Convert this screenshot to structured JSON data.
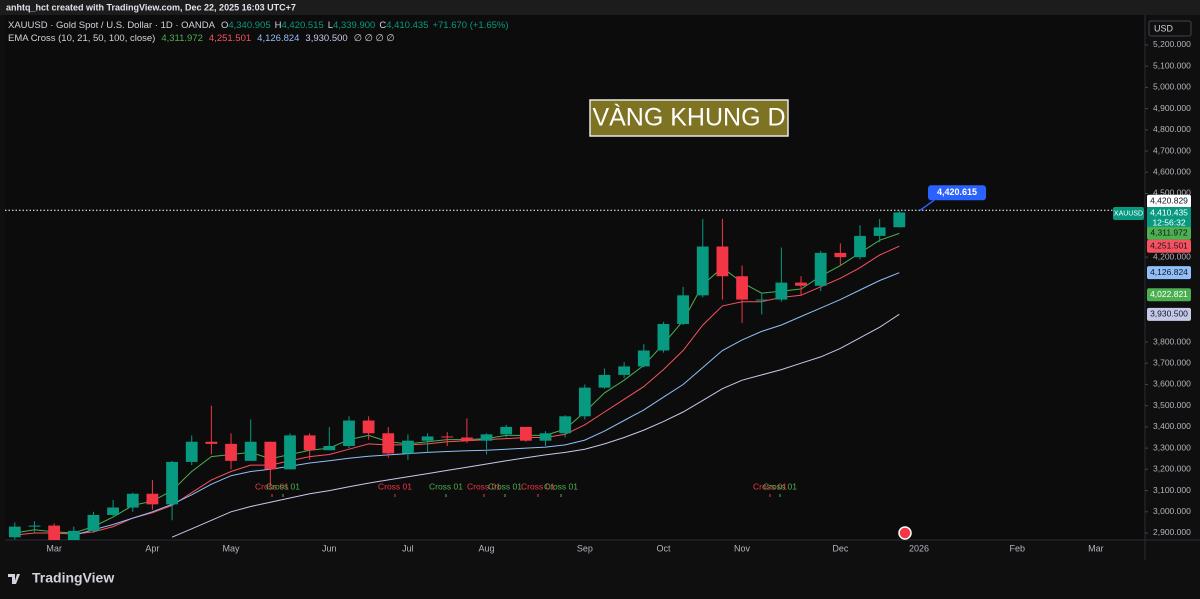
{
  "top_bar": "anhtq_hct created with TradingView.com, Dec 22, 2025 16:03 UTC+7",
  "brand": "TradingView",
  "chart_data": {
    "type": "candlestick",
    "title": "VÀNG KHUNG D",
    "symbol": "XAUUSD · Gold Spot / U.S. Dollar · 1D · OANDA",
    "ohlc_labels": [
      "O",
      "H",
      "L",
      "C"
    ],
    "ohlc_values": [
      "4,340.905",
      "4,420.515",
      "4,339.900",
      "4,410.435"
    ],
    "change": "+71.670 (+1.65%)",
    "indicator": "EMA Cross (10, 21, 50, 100, close)",
    "indicator_extra": "∅ ∅ ∅ ∅",
    "currency": "USD",
    "ticker": "XAUUSD",
    "countdown": "12:56:32",
    "categories": [
      null,
      null,
      "Mar",
      null,
      null,
      null,
      null,
      "Apr",
      null,
      null,
      null,
      "May",
      null,
      null,
      null,
      null,
      "Jun",
      null,
      null,
      null,
      "Jul",
      null,
      null,
      null,
      "Aug",
      null,
      null,
      null,
      null,
      "Sep",
      null,
      null,
      null,
      "Oct",
      null,
      null,
      null,
      "Nov",
      null,
      null,
      null,
      null,
      "Dec",
      null,
      null,
      null,
      "2026",
      null,
      null,
      null,
      null,
      "Feb",
      null,
      null,
      null,
      "Mar",
      null,
      null
    ],
    "open": [
      2880,
      2930,
      2935,
      2860,
      2910,
      2985,
      3020,
      3085,
      3035,
      3235,
      3330,
      3320,
      3240,
      3330,
      3200,
      3360,
      3290,
      3310,
      3430,
      3370,
      3275,
      3335,
      3355,
      3350,
      3335,
      3365,
      3400,
      3335,
      3370,
      3450,
      3585,
      3645,
      3685,
      3760,
      3885,
      4020,
      4250,
      4110,
      4000,
      4000,
      4080,
      4065,
      4220,
      4200,
      4300,
      4340.905,
      null,
      null,
      null,
      null,
      null,
      null,
      null,
      null,
      null,
      null,
      null,
      null
    ],
    "high": [
      2950,
      2955,
      2945,
      2930,
      3000,
      3055,
      3090,
      3150,
      3240,
      3360,
      3500,
      3370,
      3435,
      3330,
      3370,
      3370,
      3400,
      3450,
      3450,
      3400,
      3365,
      3370,
      3375,
      3440,
      3370,
      3410,
      3400,
      3380,
      3455,
      3600,
      3675,
      3705,
      3790,
      3895,
      4060,
      4380,
      4380,
      4160,
      4030,
      4245,
      4110,
      4230,
      4265,
      4350,
      4380,
      4420.515,
      null,
      null,
      null,
      null,
      null,
      null,
      null,
      null,
      null,
      null,
      null,
      null
    ],
    "low": [
      2870,
      2900,
      2835,
      2850,
      2900,
      2980,
      3000,
      3010,
      2960,
      3220,
      3270,
      3200,
      3240,
      3120,
      3200,
      3245,
      3290,
      3300,
      3340,
      3255,
      3245,
      3280,
      3310,
      3325,
      3270,
      3350,
      3330,
      3310,
      3350,
      3435,
      3580,
      3630,
      3680,
      3750,
      3880,
      4010,
      4000,
      3890,
      3930,
      3990,
      4020,
      4040,
      4160,
      4190,
      4270,
      4339.9,
      null,
      null,
      null,
      null,
      null,
      null,
      null,
      null,
      null,
      null,
      null,
      null
    ],
    "close": [
      2930,
      2935,
      2860,
      2910,
      2985,
      3020,
      3085,
      3035,
      3235,
      3330,
      3320,
      3240,
      3330,
      3200,
      3360,
      3290,
      3310,
      3430,
      3370,
      3275,
      3335,
      3355,
      3350,
      3335,
      3365,
      3400,
      3335,
      3370,
      3450,
      3585,
      3645,
      3685,
      3760,
      3885,
      4020,
      4250,
      4110,
      4000,
      4000,
      4080,
      4065,
      4220,
      4200,
      4300,
      4340,
      4410.435,
      null,
      null,
      null,
      null,
      null,
      null,
      null,
      null,
      null,
      null,
      null,
      null
    ],
    "up_color": "#089981",
    "down_color": "#f23645",
    "series": [
      {
        "color": "#4caf50",
        "last_label": "4,311.972",
        "values": [
          2900,
          2915,
          2905,
          2900,
          2930,
          2975,
          3030,
          3050,
          3100,
          3190,
          3260,
          3270,
          3280,
          3250,
          3270,
          3290,
          3300,
          3340,
          3360,
          3330,
          3320,
          3330,
          3340,
          3340,
          3345,
          3360,
          3360,
          3360,
          3390,
          3470,
          3560,
          3620,
          3690,
          3790,
          3900,
          4070,
          4150,
          4080,
          4030,
          4040,
          4050,
          4110,
          4160,
          4220,
          4280,
          4311.972,
          null,
          null,
          null,
          null,
          null,
          null,
          null,
          null,
          null,
          null,
          null,
          null
        ]
      },
      {
        "color": "#f7525f",
        "last_label": "4,251.501",
        "values": [
          2890,
          2900,
          2900,
          2895,
          2905,
          2930,
          2970,
          2995,
          3030,
          3090,
          3150,
          3190,
          3220,
          3220,
          3240,
          3260,
          3270,
          3295,
          3320,
          3315,
          3315,
          3320,
          3330,
          3335,
          3340,
          3345,
          3350,
          3350,
          3365,
          3410,
          3470,
          3530,
          3590,
          3670,
          3760,
          3880,
          3970,
          3990,
          3990,
          4010,
          4020,
          4060,
          4100,
          4150,
          4210,
          4251.501,
          null,
          null,
          null,
          null,
          null,
          null,
          null,
          null,
          null,
          null,
          null,
          null
        ]
      },
      {
        "color": "#90bff9",
        "last_label": "4,126.824",
        "values": [
          null,
          null,
          null,
          2890,
          2915,
          2940,
          2970,
          3000,
          3035,
          3080,
          3130,
          3170,
          3190,
          3200,
          3215,
          3230,
          3240,
          3252,
          3262,
          3268,
          3274,
          3280,
          3284,
          3288,
          3290,
          3295,
          3300,
          3305,
          3315,
          3338,
          3380,
          3430,
          3480,
          3540,
          3600,
          3680,
          3760,
          3810,
          3850,
          3880,
          3920,
          3960,
          4000,
          4045,
          4090,
          4126.824,
          null,
          null,
          null,
          null,
          null,
          null,
          null,
          null,
          null,
          null,
          null,
          null
        ]
      },
      {
        "color": "#c5cae9",
        "last_label": "3,930.500",
        "values": [
          null,
          null,
          null,
          null,
          null,
          null,
          null,
          null,
          2880,
          2920,
          2960,
          3000,
          3025,
          3045,
          3065,
          3085,
          3100,
          3118,
          3135,
          3150,
          3165,
          3180,
          3195,
          3210,
          3225,
          3240,
          3255,
          3268,
          3280,
          3295,
          3320,
          3350,
          3385,
          3425,
          3470,
          3525,
          3580,
          3620,
          3645,
          3670,
          3700,
          3730,
          3770,
          3820,
          3870,
          3930.5,
          null,
          null,
          null,
          null,
          null,
          null,
          null,
          null,
          null,
          null,
          null,
          null
        ]
      }
    ],
    "ylim": [
      2867,
      5341
    ],
    "yticks": [
      {
        "value": 5200,
        "label": "5,200.000"
      },
      {
        "value": 5100,
        "label": "5,100.000"
      },
      {
        "value": 5000,
        "label": "5,000.000"
      },
      {
        "value": 4900,
        "label": "4,900.000"
      },
      {
        "value": 4800,
        "label": "4,800.000"
      },
      {
        "value": 4700,
        "label": "4,700.000"
      },
      {
        "value": 4600,
        "label": "4,600.000"
      },
      {
        "value": 4500,
        "label": "4,500.000"
      },
      {
        "value": 4200,
        "label": "4,200.000"
      },
      {
        "value": 3800,
        "label": "3,800.000"
      },
      {
        "value": 3700,
        "label": "3,700.000"
      },
      {
        "value": 3600,
        "label": "3,600.000"
      },
      {
        "value": 3500,
        "label": "3,500.000"
      },
      {
        "value": 3400,
        "label": "3,400.000"
      },
      {
        "value": 3300,
        "label": "3,300.000"
      },
      {
        "value": 3200,
        "label": "3,200.000"
      },
      {
        "value": 3100,
        "label": "3,100.000"
      },
      {
        "value": 3000,
        "label": "3,000.000"
      },
      {
        "value": 2900,
        "label": "2,900.000"
      }
    ],
    "grid": false,
    "price_line": {
      "value": 4420.829,
      "label": "4,420.829",
      "color": "#ffffff"
    },
    "last_price": {
      "value": 4410.435,
      "label": "4,410.435",
      "color": "#089981"
    },
    "axis_labels": [
      {
        "value": 4022.821,
        "label": "4,022.821",
        "color": "#4caf50"
      }
    ],
    "callout": {
      "value": 4420.615,
      "label": "4,420.615",
      "color": "#2962ff"
    },
    "cross_labels": [
      {
        "text": "Cross 01",
        "color": "#f23645"
      },
      {
        "text": "Cross 01",
        "color": "#4caf50"
      },
      {
        "text": "Cross 01",
        "color": "#f23645"
      },
      {
        "text": "Cross 01",
        "color": "#4caf50"
      },
      {
        "text": "Cross 01",
        "color": "#f23645"
      },
      {
        "text": "Cross 01",
        "color": "#4caf50"
      },
      {
        "text": "Cross 01",
        "color": "#f23645"
      },
      {
        "text": "Cross 01",
        "color": "#4caf50"
      },
      {
        "text": "Cross 01",
        "color": "#f23645"
      },
      {
        "text": "Cross 01",
        "color": "#4caf50"
      }
    ]
  }
}
